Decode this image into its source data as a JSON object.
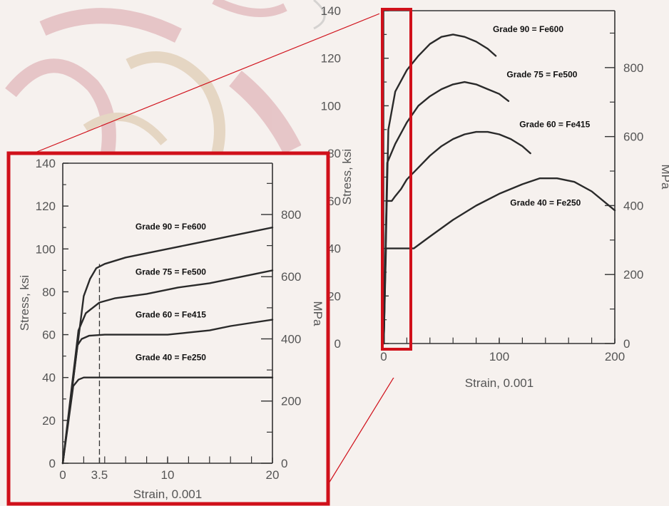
{
  "colors": {
    "background": "#f6f1ee",
    "watermark": "#d9a2a9",
    "watermark_tan": "#d8c0a0",
    "highlight": "#d0101a",
    "curve": "#2a2a2a",
    "axis": "#333333",
    "tick_text": "#555555"
  },
  "chart_data": [
    {
      "type": "line",
      "title": "",
      "xlabel": "Strain, 0.001",
      "ylabel": "Stress, ksi",
      "ylabel_right": "MPa",
      "xlim": [
        0,
        200
      ],
      "ylim": [
        0,
        140
      ],
      "y2lim": [
        0,
        965
      ],
      "xticks": [
        0,
        100,
        200
      ],
      "xtick_labels": [
        "0",
        "100",
        "200"
      ],
      "yticks": [
        0,
        20,
        40,
        60,
        80,
        100,
        120,
        140
      ],
      "ytick_labels": [
        "0",
        "20",
        "40",
        "60",
        "80",
        "100",
        "120",
        "140"
      ],
      "y2ticks": [
        0,
        200,
        400,
        600,
        800
      ],
      "y2tick_labels": [
        "0",
        "200",
        "400",
        "600",
        "800"
      ],
      "grid": false,
      "highlight_region_x": [
        0,
        20
      ],
      "series": [
        {
          "name": "Grade 90 = Fe600",
          "x": [
            0,
            4,
            10,
            20,
            30,
            40,
            50,
            60,
            70,
            80,
            90,
            97
          ],
          "y": [
            0,
            90,
            106,
            115,
            121,
            126,
            129,
            130,
            129,
            127,
            124,
            121
          ],
          "label_at": [
            125,
            131
          ]
        },
        {
          "name": "Grade 75 = Fe500",
          "x": [
            0,
            3,
            10,
            20,
            30,
            40,
            50,
            60,
            70,
            80,
            90,
            100,
            108
          ],
          "y": [
            0,
            76,
            84,
            93,
            100,
            104,
            107,
            109,
            110,
            109,
            107,
            105,
            102
          ],
          "label_at": [
            137,
            112
          ]
        },
        {
          "name": "Grade 60 = Fe415",
          "x": [
            0,
            2.5,
            7,
            10,
            15,
            20,
            30,
            40,
            50,
            60,
            70,
            80,
            90,
            100,
            110,
            120,
            127
          ],
          "y": [
            0,
            60,
            60,
            62,
            65,
            69,
            74,
            79,
            83,
            86,
            88,
            89,
            89,
            88,
            86,
            83,
            80
          ],
          "label_at": [
            148,
            91
          ]
        },
        {
          "name": "Grade 40 = Fe250",
          "x": [
            0,
            2,
            26,
            40,
            60,
            80,
            100,
            120,
            135,
            150,
            165,
            180,
            200
          ],
          "y": [
            0,
            40,
            40,
            45,
            52,
            58,
            63,
            67,
            69.5,
            69.5,
            68,
            64,
            56
          ],
          "label_at": [
            140,
            58
          ]
        }
      ]
    },
    {
      "type": "line",
      "title": "",
      "xlabel": "Strain, 0.001",
      "ylabel": "Stress, ksi",
      "ylabel_right": "MPa",
      "xlim": [
        0,
        20
      ],
      "ylim": [
        0,
        140
      ],
      "y2lim": [
        0,
        965
      ],
      "xticks": [
        0,
        3.5,
        10,
        20
      ],
      "xtick_labels": [
        "0",
        "3.5",
        "10",
        "20"
      ],
      "yticks": [
        0,
        20,
        40,
        60,
        80,
        100,
        120,
        140
      ],
      "ytick_labels": [
        "0",
        "20",
        "40",
        "60",
        "80",
        "100",
        "120",
        "140"
      ],
      "y2ticks": [
        0,
        200,
        400,
        600,
        800
      ],
      "y2tick_labels": [
        "0",
        "200",
        "400",
        "600",
        "800"
      ],
      "grid": false,
      "reference_line_x": 3.5,
      "series": [
        {
          "name": "Grade 90 = Fe600",
          "x": [
            0,
            2,
            2.6,
            3.2,
            4,
            6,
            8,
            10,
            12,
            14,
            16,
            18,
            20
          ],
          "y": [
            0,
            78,
            86,
            91,
            93,
            96,
            98,
            100,
            102,
            104,
            106,
            108,
            110
          ],
          "label_at": [
            10.3,
            109
          ]
        },
        {
          "name": "Grade 75 = Fe500",
          "x": [
            0,
            1.5,
            2.2,
            3.5,
            5,
            8,
            11,
            14,
            17,
            20
          ],
          "y": [
            0,
            62,
            70,
            75,
            77,
            79,
            82,
            84,
            87,
            90
          ],
          "label_at": [
            10.3,
            88
          ]
        },
        {
          "name": "Grade 60 = Fe415",
          "x": [
            0,
            1.4,
            1.8,
            2.5,
            4,
            6,
            10,
            12,
            14,
            16,
            18,
            20
          ],
          "y": [
            0,
            55,
            58,
            59.5,
            60,
            60,
            60,
            61,
            62,
            64,
            65.5,
            67
          ],
          "label_at": [
            10.3,
            68
          ]
        },
        {
          "name": "Grade 40 = Fe250",
          "x": [
            0,
            1,
            1.5,
            2,
            5,
            10,
            15,
            20
          ],
          "y": [
            0,
            36,
            39,
            40,
            40,
            40,
            40,
            40
          ],
          "label_at": [
            10.3,
            48
          ]
        }
      ]
    }
  ]
}
